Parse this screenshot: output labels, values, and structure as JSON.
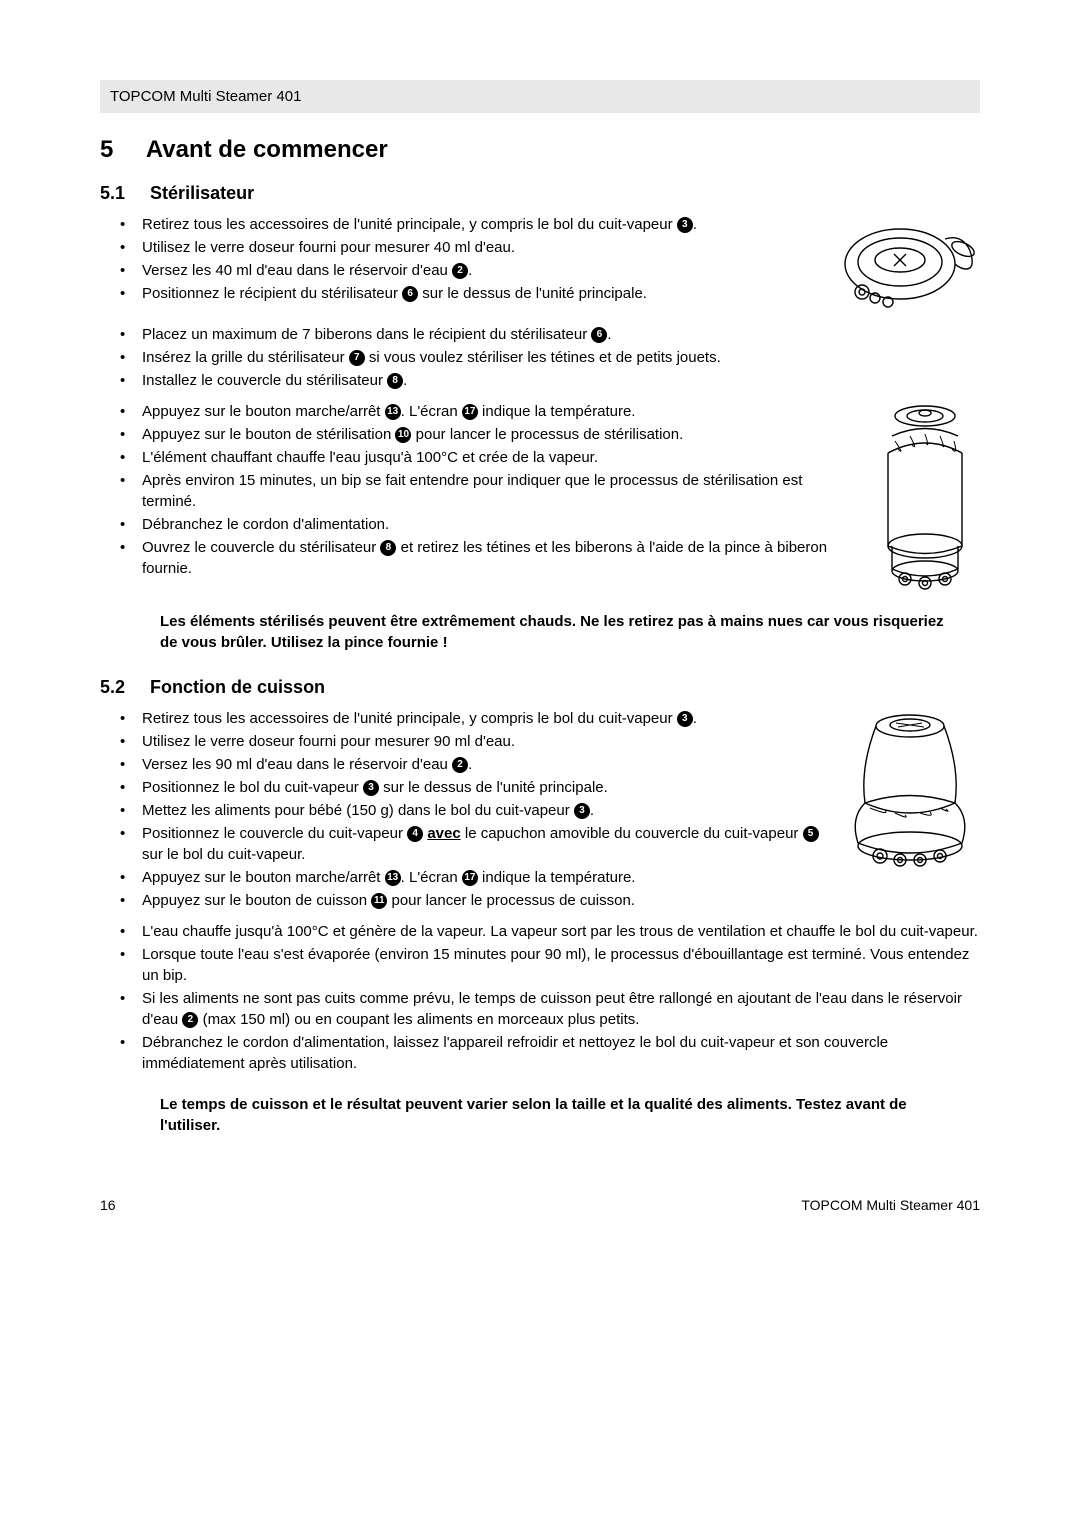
{
  "header": {
    "product": "TOPCOM Multi Steamer 401"
  },
  "section": {
    "number": "5",
    "title": "Avant de commencer"
  },
  "sub1": {
    "number": "5.1",
    "title": "Stérilisateur",
    "bullets_a": [
      {
        "text_parts": [
          "Retirez tous les accessoires de l'unité principale, y compris le bol du cuit-vapeur ",
          "."
        ],
        "circles": [
          "3"
        ]
      },
      {
        "text_parts": [
          "Utilisez le verre doseur fourni pour mesurer 40 ml d'eau."
        ],
        "circles": []
      },
      {
        "text_parts": [
          "Versez les 40 ml d'eau dans le réservoir d'eau ",
          "."
        ],
        "circles": [
          "2"
        ]
      },
      {
        "text_parts": [
          "Positionnez le récipient du stérilisateur ",
          " sur le dessus de l'unité principale."
        ],
        "circles": [
          "6"
        ]
      }
    ],
    "bullets_b": [
      {
        "text_parts": [
          "Placez un maximum de 7 biberons dans le récipient du stérilisateur ",
          "."
        ],
        "circles": [
          "6"
        ]
      },
      {
        "text_parts": [
          "Insérez la grille du stérilisateur ",
          " si vous voulez stériliser les tétines et de petits jouets."
        ],
        "circles": [
          "7"
        ]
      },
      {
        "text_parts": [
          "Installez le couvercle du stérilisateur ",
          "."
        ],
        "circles": [
          "8"
        ]
      }
    ],
    "bullets_c": [
      {
        "text_parts": [
          "Appuyez sur le bouton marche/arrêt ",
          ". L'écran ",
          " indique la température."
        ],
        "circles": [
          "13",
          "17"
        ]
      },
      {
        "text_parts": [
          "Appuyez sur le bouton de stérilisation ",
          " pour lancer le processus de stérilisation."
        ],
        "circles": [
          "10"
        ]
      },
      {
        "text_parts": [
          "L'élément chauffant chauffe l'eau jusqu'à 100°C et crée de la vapeur."
        ],
        "circles": []
      },
      {
        "text_parts": [
          "Après environ 15 minutes, un bip se fait entendre pour indiquer que le processus de stérilisation est terminé."
        ],
        "circles": []
      },
      {
        "text_parts": [
          "Débranchez le cordon d'alimentation."
        ],
        "circles": []
      },
      {
        "text_parts": [
          "Ouvrez le couvercle du stérilisateur ",
          " et retirez les tétines et les biberons à l'aide de la pince à biberon fournie."
        ],
        "circles": [
          "8"
        ]
      }
    ],
    "warning": "Les éléments stérilisés peuvent être extrêmement chauds. Ne les retirez pas à mains nues car vous risqueriez de vous brûler. Utilisez la pince fournie !"
  },
  "sub2": {
    "number": "5.2",
    "title": "Fonction de cuisson",
    "bullets_a": [
      {
        "text_parts": [
          "Retirez tous les accessoires de l'unité principale, y compris le bol du cuit-vapeur ",
          "."
        ],
        "circles": [
          "3"
        ]
      },
      {
        "text_parts": [
          "Utilisez le verre doseur fourni pour mesurer 90 ml d'eau."
        ],
        "circles": []
      },
      {
        "text_parts": [
          "Versez les 90 ml d'eau dans le réservoir d'eau ",
          "."
        ],
        "circles": [
          "2"
        ]
      },
      {
        "text_parts": [
          "Positionnez le bol du cuit-vapeur ",
          " sur le dessus de l'unité principale."
        ],
        "circles": [
          "3"
        ]
      },
      {
        "text_parts": [
          "Mettez les aliments pour bébé (150 g) dans le bol du cuit-vapeur ",
          "."
        ],
        "circles": [
          "3"
        ]
      },
      {
        "text_parts": [
          "Positionnez le couvercle du cuit-vapeur ",
          " ",
          " le capuchon amovible du couvercle du cuit-vapeur ",
          " sur le bol du cuit-vapeur."
        ],
        "circles": [
          "4",
          "5"
        ],
        "underlined": "avec"
      },
      {
        "text_parts": [
          "Appuyez sur le bouton marche/arrêt ",
          ". L'écran ",
          " indique la température."
        ],
        "circles": [
          "13",
          "17"
        ]
      },
      {
        "text_parts": [
          "Appuyez sur le bouton de cuisson ",
          " pour lancer le processus de cuisson."
        ],
        "circles": [
          "11"
        ]
      }
    ],
    "bullets_b": [
      {
        "text_parts": [
          "L'eau chauffe jusqu'à 100°C et génère de la vapeur. La vapeur sort par les trous de ventilation et chauffe le bol du cuit-vapeur."
        ],
        "circles": []
      },
      {
        "text_parts": [
          "Lorsque toute l'eau s'est évaporée (environ 15 minutes pour 90 ml), le processus d'ébouillantage est terminé. Vous entendez un bip."
        ],
        "circles": []
      },
      {
        "text_parts": [
          "Si les aliments ne sont pas cuits comme prévu, le temps de cuisson peut être rallongé en ajoutant de l'eau dans le réservoir d'eau ",
          " (max 150 ml) ou en coupant les aliments en morceaux plus petits."
        ],
        "circles": [
          "2"
        ]
      },
      {
        "text_parts": [
          "Débranchez le cordon d'alimentation, laissez l'appareil refroidir et nettoyez le bol du cuit-vapeur et son couvercle immédiatement après utilisation."
        ],
        "circles": []
      }
    ],
    "warning": "Le temps de cuisson et le résultat peuvent varier selon la taille et la qualité des aliments. Testez avant de l'utiliser."
  },
  "footer": {
    "page": "16",
    "product": "TOPCOM Multi Steamer 401"
  },
  "illustrations": {
    "stroke": "#000000",
    "stroke_width": 1.4,
    "bg": "#ffffff"
  }
}
